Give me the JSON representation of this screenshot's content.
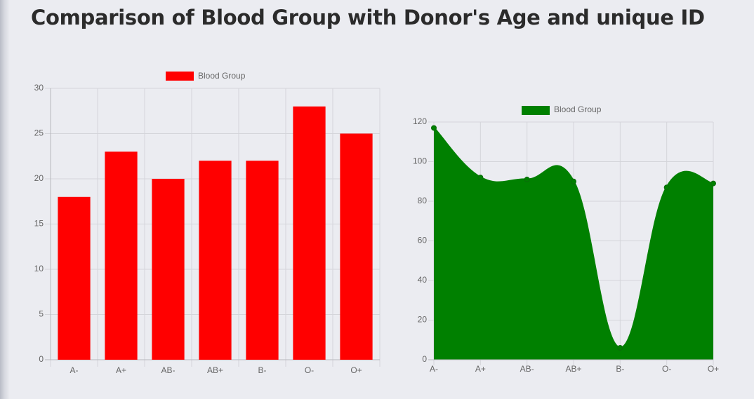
{
  "page": {
    "title": "Comparison of Blood Group with Donor's Age and unique ID"
  },
  "chart_data": [
    {
      "type": "bar",
      "title": "",
      "categories": [
        "A-",
        "A+",
        "AB-",
        "AB+",
        "B-",
        "O-",
        "O+"
      ],
      "series": [
        {
          "name": "Blood Group",
          "values": [
            18,
            23,
            20,
            22,
            22,
            28,
            25
          ],
          "color": "#ff0000"
        }
      ],
      "xlabel": "",
      "ylabel": "",
      "ylim": [
        0,
        30
      ],
      "yticks": [
        0,
        5,
        10,
        15,
        20,
        25,
        30
      ],
      "grid": true,
      "legend": "top-center"
    },
    {
      "type": "area",
      "title": "",
      "categories": [
        "A-",
        "A+",
        "AB-",
        "AB+",
        "B-",
        "O-",
        "O+"
      ],
      "series": [
        {
          "name": "Blood Group",
          "values": [
            117,
            92,
            91,
            90,
            6,
            87,
            89
          ],
          "color": "#008000"
        }
      ],
      "xlabel": "",
      "ylabel": "",
      "ylim": [
        0,
        120
      ],
      "yticks": [
        0,
        20,
        40,
        60,
        80,
        100,
        120
      ],
      "grid": true,
      "legend": "top-center",
      "smooth": true
    }
  ]
}
